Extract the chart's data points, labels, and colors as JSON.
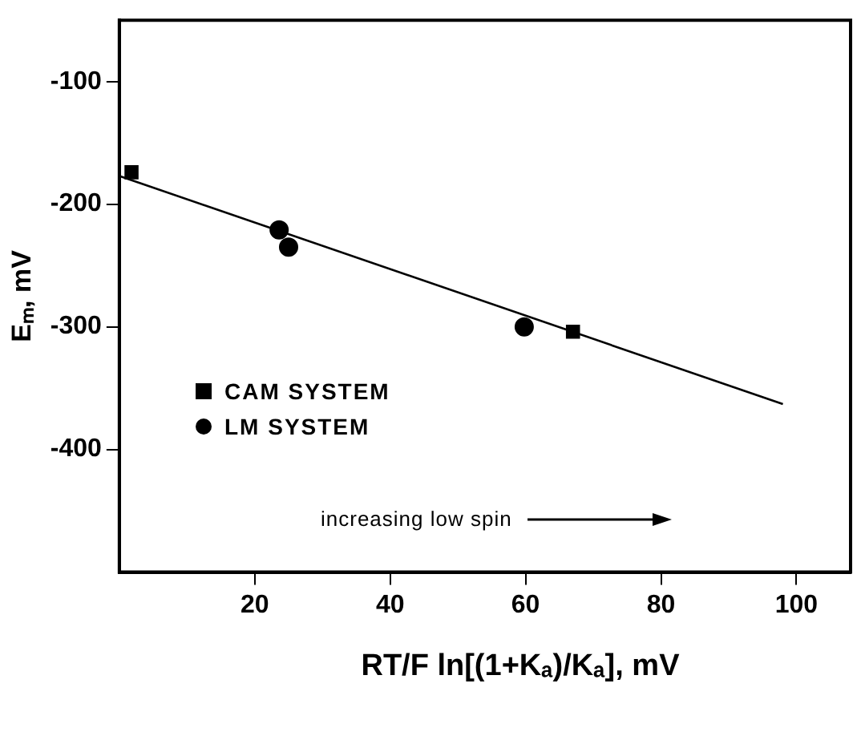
{
  "chart_data": {
    "type": "scatter",
    "xlabel": "RT/F ln[(1+Kₐ)/Kₐ], mV",
    "ylabel": "Eₘ, mV",
    "xlim": [
      0,
      108
    ],
    "xticks": [
      20,
      40,
      60,
      80,
      100
    ],
    "ylim": [
      -500,
      -50
    ],
    "yticks": [
      -100,
      -200,
      -300,
      -400
    ],
    "grid": false,
    "legend": "left",
    "annotations": [
      "increasing low spin"
    ],
    "series": [
      {
        "name": "CAM SYSTEM",
        "color": "#000000",
        "marker": "square",
        "x": [
          1.8,
          67
        ],
        "values": [
          -174,
          -304
        ]
      },
      {
        "name": "LM SYSTEM",
        "color": "#000000",
        "marker": "circle",
        "x": [
          23.6,
          25,
          59.8
        ],
        "values": [
          -221,
          -235,
          -300
        ]
      },
      {
        "type": "line",
        "color": "#000000",
        "marker": "none",
        "x": [
          0,
          98
        ],
        "values": [
          -177,
          -363
        ]
      }
    ]
  }
}
